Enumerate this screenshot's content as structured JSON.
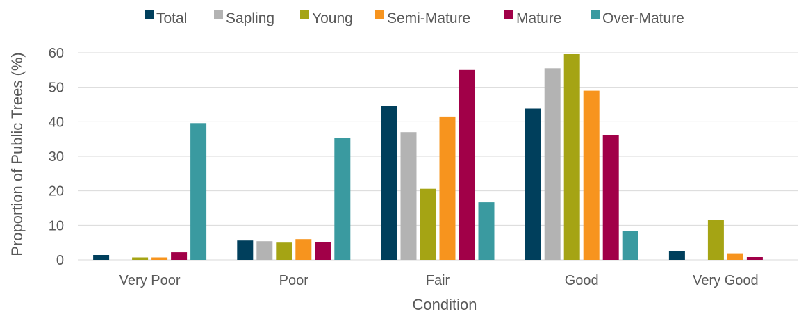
{
  "chart_data": {
    "type": "bar",
    "title": "",
    "xlabel": "Condition",
    "ylabel": "Proportion of Public Trees (%)",
    "ylim": [
      0,
      60
    ],
    "yticks": [
      0,
      10,
      20,
      30,
      40,
      50,
      60
    ],
    "grid": true,
    "legend_position": "top",
    "categories": [
      "Very Poor",
      "Poor",
      "Fair",
      "Good",
      "Very Good"
    ],
    "series": [
      {
        "name": "Total",
        "color": "#003f5c",
        "values": [
          1.4,
          5.6,
          44.5,
          43.8,
          2.6
        ]
      },
      {
        "name": "Sapling",
        "color": "#b3b3b3",
        "values": [
          0,
          5.4,
          37.0,
          55.5,
          0
        ]
      },
      {
        "name": "Young",
        "color": "#a5a414",
        "values": [
          0.7,
          5.0,
          20.6,
          59.6,
          11.5
        ]
      },
      {
        "name": "Semi-Mature",
        "color": "#f7941e",
        "values": [
          0.7,
          6.0,
          41.5,
          49.0,
          1.9
        ]
      },
      {
        "name": "Mature",
        "color": "#a10048",
        "values": [
          2.2,
          5.2,
          55.0,
          36.1,
          0.8
        ]
      },
      {
        "name": "Over-Mature",
        "color": "#3a9aa0",
        "values": [
          39.6,
          35.4,
          16.7,
          8.3,
          0
        ]
      }
    ]
  }
}
